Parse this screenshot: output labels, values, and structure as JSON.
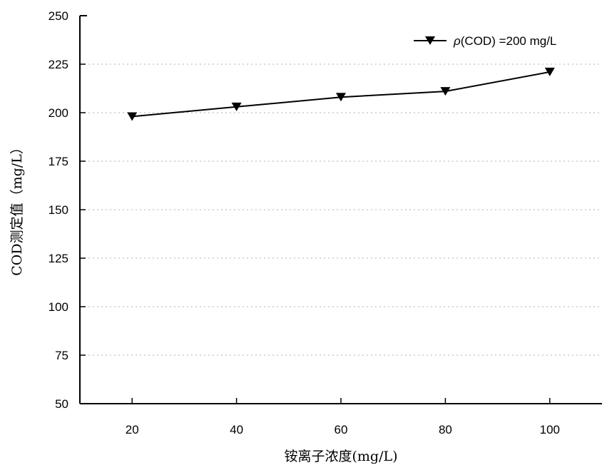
{
  "chart_data": {
    "type": "line",
    "title": "",
    "xlabel": "铵离子浓度(mg/L)",
    "ylabel": "COD测定值（mg/L）",
    "x": [
      20,
      40,
      60,
      80,
      100
    ],
    "series": [
      {
        "name_symbol": "ρ",
        "name_rest": "(COD) =200 mg/L",
        "values": [
          198,
          203,
          208,
          211,
          221
        ],
        "marker": "triangle-down",
        "color": "#000000"
      }
    ],
    "xticks": [
      "20",
      "40",
      "60",
      "80",
      "100"
    ],
    "yticks": [
      "50",
      "75",
      "100",
      "125",
      "150",
      "175",
      "200",
      "225",
      "250"
    ],
    "xlim": [
      10,
      110
    ],
    "ylim": [
      50,
      250
    ],
    "grid": "horizontal-dotted",
    "legend_position": "top-right"
  }
}
